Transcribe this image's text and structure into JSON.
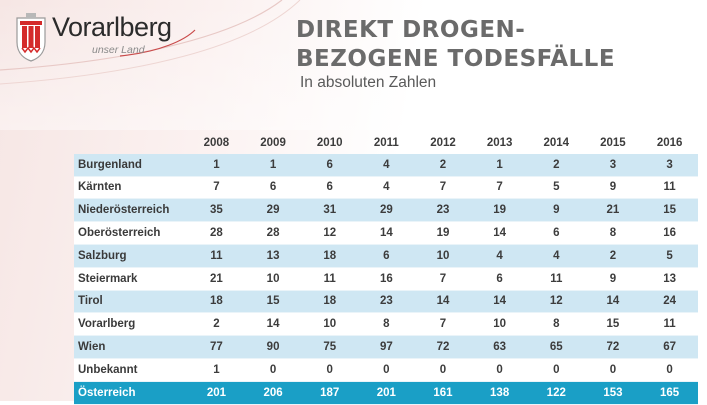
{
  "logo": {
    "brand": "Vorarlberg",
    "tagline": "unser Land",
    "colors": {
      "red": "#d42a2a",
      "white": "#ffffff",
      "gray": "#8a8a8a"
    }
  },
  "title": {
    "line1": "DIREKT DROGEN-",
    "line2": "BEZOGENE TODESFÄLLE"
  },
  "subtitle": "In absoluten Zahlen",
  "table": {
    "years": [
      "2008",
      "2009",
      "2010",
      "2011",
      "2012",
      "2013",
      "2014",
      "2015",
      "2016"
    ],
    "rows": [
      {
        "label": "Burgenland",
        "values": [
          "1",
          "1",
          "6",
          "4",
          "2",
          "1",
          "2",
          "3",
          "3"
        ]
      },
      {
        "label": "Kärnten",
        "values": [
          "7",
          "6",
          "6",
          "4",
          "7",
          "7",
          "5",
          "9",
          "11"
        ]
      },
      {
        "label": "Niederösterreich",
        "values": [
          "35",
          "29",
          "31",
          "29",
          "23",
          "19",
          "9",
          "21",
          "15"
        ]
      },
      {
        "label": "Oberösterreich",
        "values": [
          "28",
          "28",
          "12",
          "14",
          "19",
          "14",
          "6",
          "8",
          "16"
        ]
      },
      {
        "label": "Salzburg",
        "values": [
          "11",
          "13",
          "18",
          "6",
          "10",
          "4",
          "4",
          "2",
          "5"
        ]
      },
      {
        "label": "Steiermark",
        "values": [
          "21",
          "10",
          "11",
          "16",
          "7",
          "6",
          "11",
          "9",
          "13"
        ]
      },
      {
        "label": "Tirol",
        "values": [
          "18",
          "15",
          "18",
          "23",
          "14",
          "14",
          "12",
          "14",
          "24"
        ]
      },
      {
        "label": "Vorarlberg",
        "values": [
          "2",
          "14",
          "10",
          "8",
          "7",
          "10",
          "8",
          "15",
          "11"
        ]
      },
      {
        "label": "Wien",
        "values": [
          "77",
          "90",
          "75",
          "97",
          "72",
          "63",
          "65",
          "72",
          "67"
        ]
      },
      {
        "label": "Unbekannt",
        "values": [
          "1",
          "0",
          "0",
          "0",
          "0",
          "0",
          "0",
          "0",
          "0"
        ]
      }
    ],
    "total": {
      "label": "Österreich",
      "values": [
        "201",
        "206",
        "187",
        "201",
        "161",
        "138",
        "122",
        "153",
        "165"
      ]
    },
    "colors": {
      "stripe": "#cfe7f3",
      "total": "#1a9fc6"
    }
  }
}
